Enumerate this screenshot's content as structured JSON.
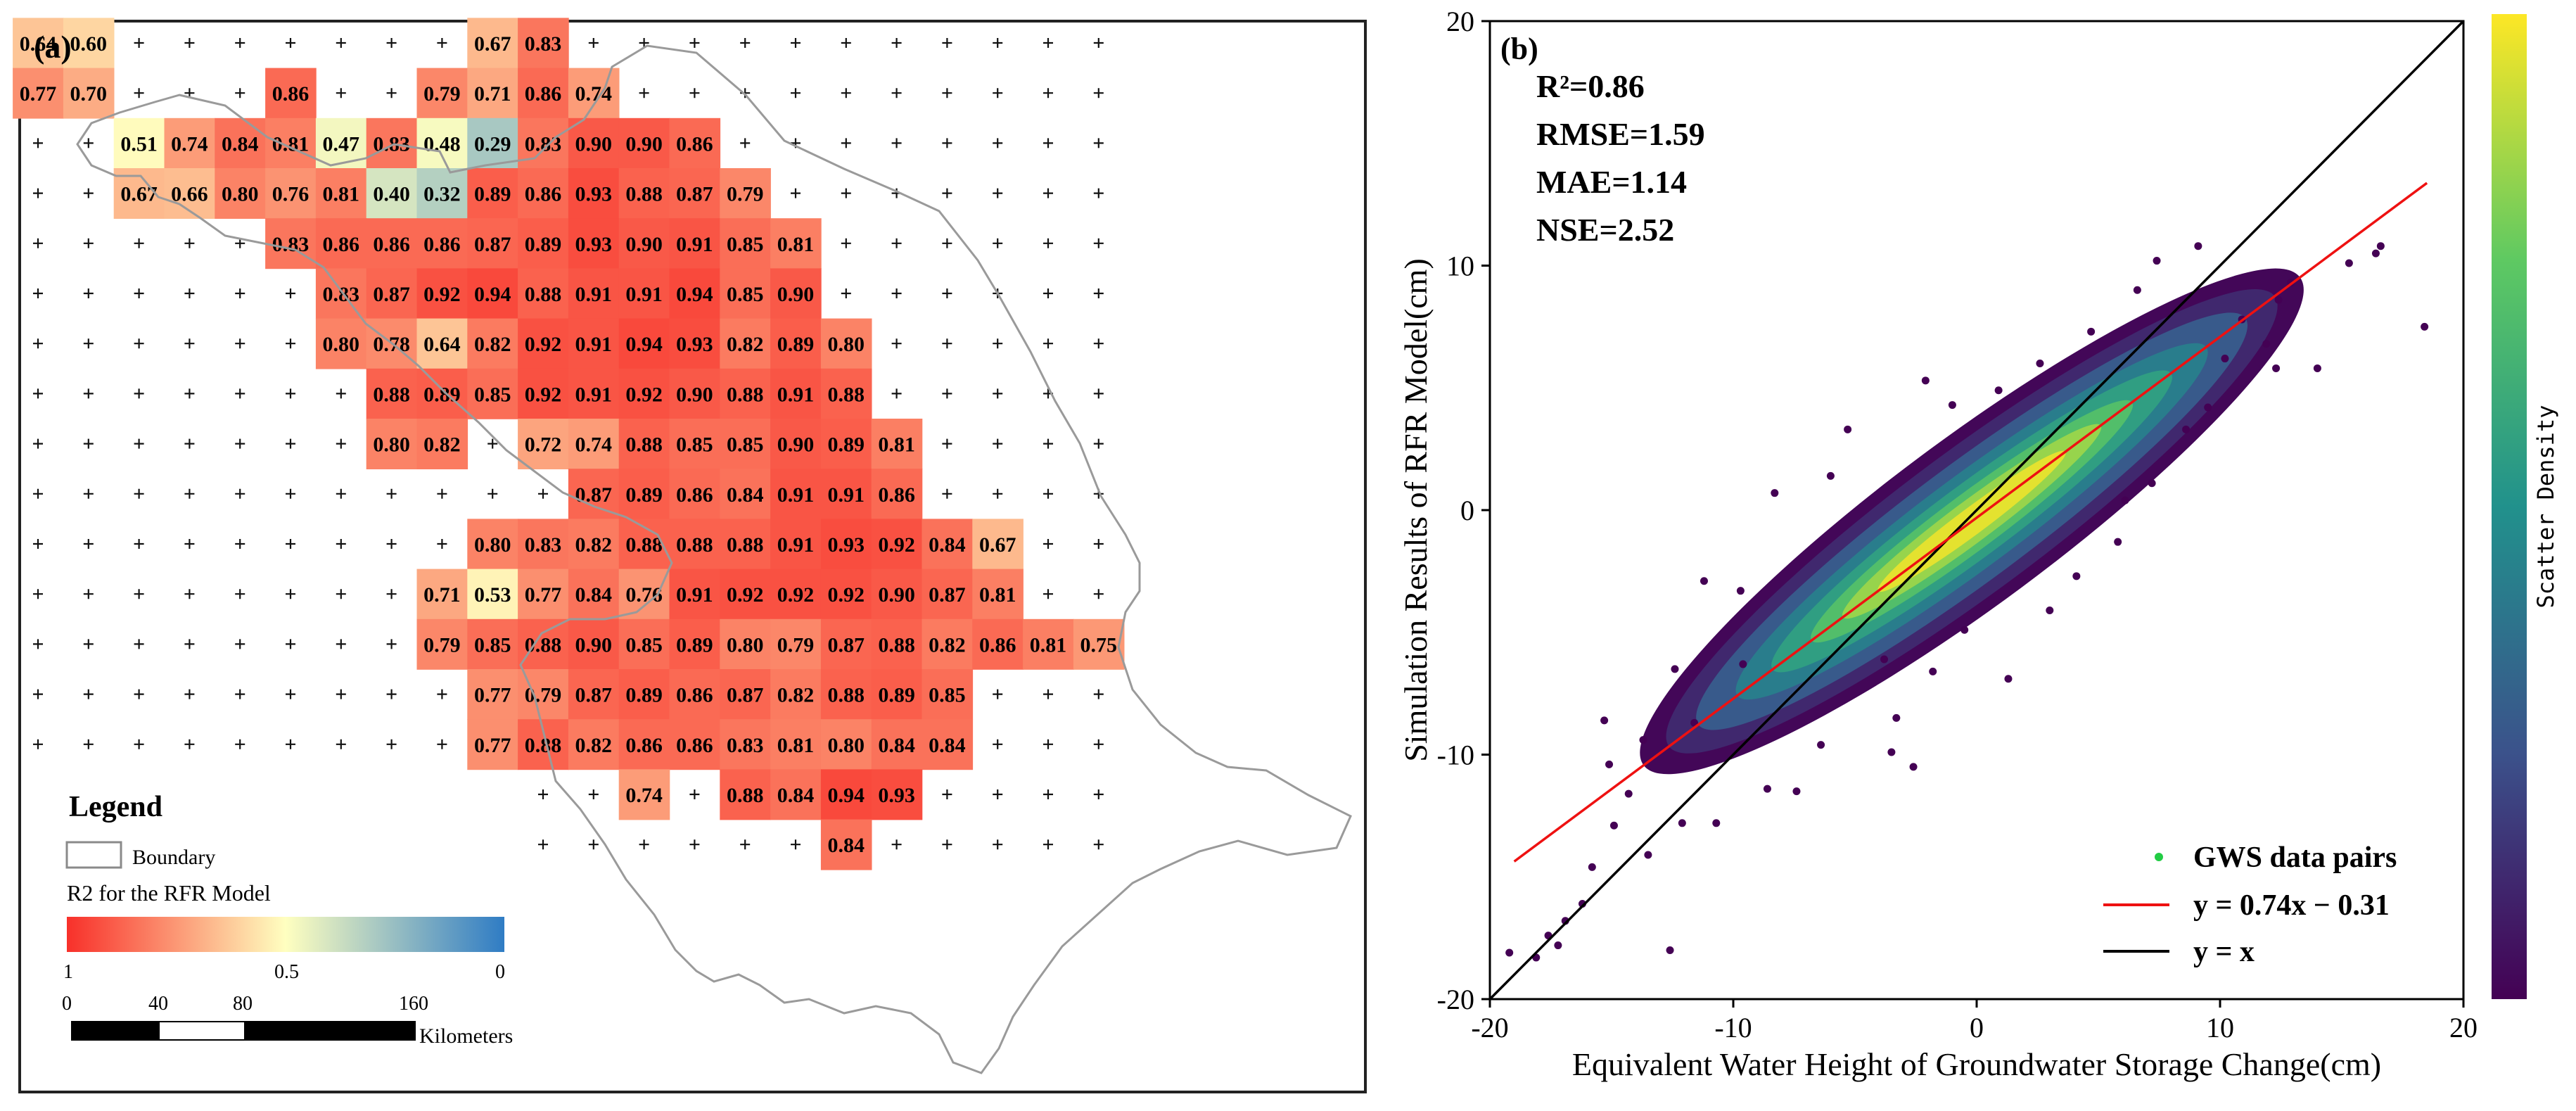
{
  "chart_data": [
    {
      "type": "heatmap",
      "panel_label": "(a)",
      "legend": {
        "title": "Legend",
        "boundary_label": "Boundary",
        "ramp_title": "R2 for the RFR Model",
        "ramp_ticks": [
          "1",
          "0.5",
          "0"
        ],
        "ramp_colors": [
          "#f8302a",
          "#ffffc0",
          "#2f7cc4"
        ],
        "scale_ticks": [
          "0",
          "40",
          "80",
          "160"
        ],
        "scale_unit": "Kilometers"
      },
      "grid_rows": 17,
      "grid_cols": 22,
      "cells": [
        {
          "row": 0,
          "col": 0,
          "value": 0.64
        },
        {
          "row": 0,
          "col": 1,
          "value": 0.6
        },
        {
          "row": 0,
          "col": 9,
          "value": 0.67
        },
        {
          "row": 0,
          "col": 10,
          "value": 0.83
        },
        {
          "row": 1,
          "col": 0,
          "value": 0.77
        },
        {
          "row": 1,
          "col": 1,
          "value": 0.7
        },
        {
          "row": 1,
          "col": 5,
          "value": 0.86
        },
        {
          "row": 1,
          "col": 8,
          "value": 0.79
        },
        {
          "row": 1,
          "col": 9,
          "value": 0.71
        },
        {
          "row": 1,
          "col": 10,
          "value": 0.86
        },
        {
          "row": 1,
          "col": 11,
          "value": 0.74
        },
        {
          "row": 2,
          "col": 2,
          "value": 0.51
        },
        {
          "row": 2,
          "col": 3,
          "value": 0.74
        },
        {
          "row": 2,
          "col": 4,
          "value": 0.84
        },
        {
          "row": 2,
          "col": 5,
          "value": 0.81
        },
        {
          "row": 2,
          "col": 6,
          "value": 0.47
        },
        {
          "row": 2,
          "col": 7,
          "value": 0.83
        },
        {
          "row": 2,
          "col": 8,
          "value": 0.48
        },
        {
          "row": 2,
          "col": 9,
          "value": 0.29
        },
        {
          "row": 2,
          "col": 10,
          "value": 0.83
        },
        {
          "row": 2,
          "col": 11,
          "value": 0.9
        },
        {
          "row": 2,
          "col": 12,
          "value": 0.9
        },
        {
          "row": 2,
          "col": 13,
          "value": 0.86
        },
        {
          "row": 3,
          "col": 2,
          "value": 0.67
        },
        {
          "row": 3,
          "col": 3,
          "value": 0.66
        },
        {
          "row": 3,
          "col": 4,
          "value": 0.8
        },
        {
          "row": 3,
          "col": 5,
          "value": 0.76
        },
        {
          "row": 3,
          "col": 6,
          "value": 0.81
        },
        {
          "row": 3,
          "col": 7,
          "value": 0.4
        },
        {
          "row": 3,
          "col": 8,
          "value": 0.32
        },
        {
          "row": 3,
          "col": 9,
          "value": 0.89
        },
        {
          "row": 3,
          "col": 10,
          "value": 0.86
        },
        {
          "row": 3,
          "col": 11,
          "value": 0.93
        },
        {
          "row": 3,
          "col": 12,
          "value": 0.88
        },
        {
          "row": 3,
          "col": 13,
          "value": 0.87
        },
        {
          "row": 3,
          "col": 14,
          "value": 0.79
        },
        {
          "row": 4,
          "col": 5,
          "value": 0.83
        },
        {
          "row": 4,
          "col": 6,
          "value": 0.86
        },
        {
          "row": 4,
          "col": 7,
          "value": 0.86
        },
        {
          "row": 4,
          "col": 8,
          "value": 0.86
        },
        {
          "row": 4,
          "col": 9,
          "value": 0.87
        },
        {
          "row": 4,
          "col": 10,
          "value": 0.89
        },
        {
          "row": 4,
          "col": 11,
          "value": 0.93
        },
        {
          "row": 4,
          "col": 12,
          "value": 0.9
        },
        {
          "row": 4,
          "col": 13,
          "value": 0.91
        },
        {
          "row": 4,
          "col": 14,
          "value": 0.85
        },
        {
          "row": 4,
          "col": 15,
          "value": 0.81
        },
        {
          "row": 5,
          "col": 6,
          "value": 0.83
        },
        {
          "row": 5,
          "col": 7,
          "value": 0.87
        },
        {
          "row": 5,
          "col": 8,
          "value": 0.92
        },
        {
          "row": 5,
          "col": 9,
          "value": 0.94
        },
        {
          "row": 5,
          "col": 10,
          "value": 0.88
        },
        {
          "row": 5,
          "col": 11,
          "value": 0.91
        },
        {
          "row": 5,
          "col": 12,
          "value": 0.91
        },
        {
          "row": 5,
          "col": 13,
          "value": 0.94
        },
        {
          "row": 5,
          "col": 14,
          "value": 0.85
        },
        {
          "row": 5,
          "col": 15,
          "value": 0.9
        },
        {
          "row": 6,
          "col": 6,
          "value": 0.8
        },
        {
          "row": 6,
          "col": 7,
          "value": 0.78
        },
        {
          "row": 6,
          "col": 8,
          "value": 0.64
        },
        {
          "row": 6,
          "col": 9,
          "value": 0.82
        },
        {
          "row": 6,
          "col": 10,
          "value": 0.92
        },
        {
          "row": 6,
          "col": 11,
          "value": 0.91
        },
        {
          "row": 6,
          "col": 12,
          "value": 0.94
        },
        {
          "row": 6,
          "col": 13,
          "value": 0.93
        },
        {
          "row": 6,
          "col": 14,
          "value": 0.82
        },
        {
          "row": 6,
          "col": 15,
          "value": 0.89
        },
        {
          "row": 6,
          "col": 16,
          "value": 0.8
        },
        {
          "row": 7,
          "col": 7,
          "value": 0.88
        },
        {
          "row": 7,
          "col": 8,
          "value": 0.89
        },
        {
          "row": 7,
          "col": 9,
          "value": 0.85
        },
        {
          "row": 7,
          "col": 10,
          "value": 0.92
        },
        {
          "row": 7,
          "col": 11,
          "value": 0.91
        },
        {
          "row": 7,
          "col": 12,
          "value": 0.92
        },
        {
          "row": 7,
          "col": 13,
          "value": 0.9
        },
        {
          "row": 7,
          "col": 14,
          "value": 0.88
        },
        {
          "row": 7,
          "col": 15,
          "value": 0.91
        },
        {
          "row": 7,
          "col": 16,
          "value": 0.88
        },
        {
          "row": 8,
          "col": 7,
          "value": 0.8
        },
        {
          "row": 8,
          "col": 8,
          "value": 0.82
        },
        {
          "row": 8,
          "col": 10,
          "value": 0.72
        },
        {
          "row": 8,
          "col": 11,
          "value": 0.74
        },
        {
          "row": 8,
          "col": 12,
          "value": 0.88
        },
        {
          "row": 8,
          "col": 13,
          "value": 0.85
        },
        {
          "row": 8,
          "col": 14,
          "value": 0.85
        },
        {
          "row": 8,
          "col": 15,
          "value": 0.9
        },
        {
          "row": 8,
          "col": 16,
          "value": 0.89
        },
        {
          "row": 8,
          "col": 17,
          "value": 0.81
        },
        {
          "row": 9,
          "col": 11,
          "value": 0.87
        },
        {
          "row": 9,
          "col": 12,
          "value": 0.89
        },
        {
          "row": 9,
          "col": 13,
          "value": 0.86
        },
        {
          "row": 9,
          "col": 14,
          "value": 0.84
        },
        {
          "row": 9,
          "col": 15,
          "value": 0.91
        },
        {
          "row": 9,
          "col": 16,
          "value": 0.91
        },
        {
          "row": 9,
          "col": 17,
          "value": 0.86
        },
        {
          "row": 10,
          "col": 9,
          "value": 0.8
        },
        {
          "row": 10,
          "col": 10,
          "value": 0.83
        },
        {
          "row": 10,
          "col": 11,
          "value": 0.82
        },
        {
          "row": 10,
          "col": 12,
          "value": 0.88
        },
        {
          "row": 10,
          "col": 13,
          "value": 0.88
        },
        {
          "row": 10,
          "col": 14,
          "value": 0.88
        },
        {
          "row": 10,
          "col": 15,
          "value": 0.91
        },
        {
          "row": 10,
          "col": 16,
          "value": 0.93
        },
        {
          "row": 10,
          "col": 17,
          "value": 0.92
        },
        {
          "row": 10,
          "col": 18,
          "value": 0.84
        },
        {
          "row": 10,
          "col": 19,
          "value": 0.67
        },
        {
          "row": 11,
          "col": 8,
          "value": 0.71
        },
        {
          "row": 11,
          "col": 9,
          "value": 0.53
        },
        {
          "row": 11,
          "col": 10,
          "value": 0.77
        },
        {
          "row": 11,
          "col": 11,
          "value": 0.84
        },
        {
          "row": 11,
          "col": 12,
          "value": 0.76
        },
        {
          "row": 11,
          "col": 13,
          "value": 0.91
        },
        {
          "row": 11,
          "col": 14,
          "value": 0.92
        },
        {
          "row": 11,
          "col": 15,
          "value": 0.92
        },
        {
          "row": 11,
          "col": 16,
          "value": 0.92
        },
        {
          "row": 11,
          "col": 17,
          "value": 0.9
        },
        {
          "row": 11,
          "col": 18,
          "value": 0.87
        },
        {
          "row": 11,
          "col": 19,
          "value": 0.81
        },
        {
          "row": 12,
          "col": 8,
          "value": 0.79
        },
        {
          "row": 12,
          "col": 9,
          "value": 0.85
        },
        {
          "row": 12,
          "col": 10,
          "value": 0.88
        },
        {
          "row": 12,
          "col": 11,
          "value": 0.9
        },
        {
          "row": 12,
          "col": 12,
          "value": 0.85
        },
        {
          "row": 12,
          "col": 13,
          "value": 0.89
        },
        {
          "row": 12,
          "col": 14,
          "value": 0.8
        },
        {
          "row": 12,
          "col": 15,
          "value": 0.79
        },
        {
          "row": 12,
          "col": 16,
          "value": 0.87
        },
        {
          "row": 12,
          "col": 17,
          "value": 0.88
        },
        {
          "row": 12,
          "col": 18,
          "value": 0.82
        },
        {
          "row": 12,
          "col": 19,
          "value": 0.86
        },
        {
          "row": 12,
          "col": 20,
          "value": 0.81
        },
        {
          "row": 12,
          "col": 21,
          "value": 0.75
        },
        {
          "row": 13,
          "col": 9,
          "value": 0.77
        },
        {
          "row": 13,
          "col": 10,
          "value": 0.79
        },
        {
          "row": 13,
          "col": 11,
          "value": 0.87
        },
        {
          "row": 13,
          "col": 12,
          "value": 0.89
        },
        {
          "row": 13,
          "col": 13,
          "value": 0.86
        },
        {
          "row": 13,
          "col": 14,
          "value": 0.87
        },
        {
          "row": 13,
          "col": 15,
          "value": 0.82
        },
        {
          "row": 13,
          "col": 16,
          "value": 0.88
        },
        {
          "row": 13,
          "col": 17,
          "value": 0.89
        },
        {
          "row": 13,
          "col": 18,
          "value": 0.85
        },
        {
          "row": 14,
          "col": 9,
          "value": 0.77
        },
        {
          "row": 14,
          "col": 10,
          "value": 0.88
        },
        {
          "row": 14,
          "col": 11,
          "value": 0.82
        },
        {
          "row": 14,
          "col": 12,
          "value": 0.86
        },
        {
          "row": 14,
          "col": 13,
          "value": 0.86
        },
        {
          "row": 14,
          "col": 14,
          "value": 0.83
        },
        {
          "row": 14,
          "col": 15,
          "value": 0.81
        },
        {
          "row": 14,
          "col": 16,
          "value": 0.8
        },
        {
          "row": 14,
          "col": 17,
          "value": 0.84
        },
        {
          "row": 14,
          "col": 18,
          "value": 0.84
        },
        {
          "row": 15,
          "col": 12,
          "value": 0.74
        },
        {
          "row": 15,
          "col": 14,
          "value": 0.88
        },
        {
          "row": 15,
          "col": 15,
          "value": 0.84
        },
        {
          "row": 15,
          "col": 16,
          "value": 0.94
        },
        {
          "row": 15,
          "col": 17,
          "value": 0.93
        },
        {
          "row": 16,
          "col": 16,
          "value": 0.84
        }
      ]
    },
    {
      "type": "scatter",
      "panel_label": "(b)",
      "xlabel": "Equivalent Water Height of Groundwater Storage Change(cm)",
      "ylabel": "Simulation Results of RFR Model(cm)",
      "xlim": [
        -20,
        20
      ],
      "ylim": [
        -20,
        20
      ],
      "xticks": [
        "-20",
        "-10",
        "0",
        "10",
        "20"
      ],
      "yticks": [
        "-20",
        "-10",
        "0",
        "10",
        "20"
      ],
      "stats": [
        "R²=0.86",
        "RMSE=1.59",
        "MAE=1.14",
        "NSE=2.52"
      ],
      "fit": {
        "slope": 0.74,
        "intercept": -0.31,
        "x_range": [
          -19,
          18.5
        ],
        "label": "y = 0.74x − 0.31"
      },
      "identity": {
        "label": "y = x"
      },
      "points_label": "GWS data pairs",
      "colorbar_label": "Scatter Density",
      "colormap": [
        "#440154",
        "#3b528b",
        "#21918c",
        "#5ec962",
        "#fde725"
      ],
      "outliers": [
        [
          -19.2,
          -18.1
        ],
        [
          -18.1,
          -18.3
        ],
        [
          -17.6,
          -17.4
        ],
        [
          -16.9,
          -16.8
        ],
        [
          -16.2,
          -16.1
        ],
        [
          -12.6,
          -18.0
        ],
        [
          -11.6,
          -8.7
        ],
        [
          -14.9,
          -12.9
        ],
        [
          -15.8,
          -14.6
        ],
        [
          -17.2,
          -17.8
        ],
        [
          -8.3,
          0.7
        ],
        [
          -11.2,
          -2.9
        ],
        [
          -12.4,
          -6.5
        ],
        [
          -15.3,
          -8.6
        ],
        [
          -13.5,
          -14.1
        ],
        [
          -10.7,
          -12.8
        ],
        [
          -8.6,
          -11.4
        ],
        [
          -7.4,
          -11.5
        ],
        [
          -3.5,
          -9.9
        ],
        [
          -2.6,
          -10.5
        ],
        [
          -3.3,
          -8.5
        ],
        [
          -0.5,
          -4.9
        ],
        [
          1.3,
          -6.9
        ],
        [
          3.0,
          -4.1
        ],
        [
          4.1,
          -2.7
        ],
        [
          -2.1,
          5.3
        ],
        [
          -1.0,
          4.3
        ],
        [
          -5.3,
          3.3
        ],
        [
          4.7,
          7.3
        ],
        [
          6.6,
          9.0
        ],
        [
          7.4,
          10.2
        ],
        [
          9.1,
          10.8
        ],
        [
          10.9,
          7.8
        ],
        [
          12.4,
          8.6
        ],
        [
          12.9,
          9.3
        ],
        [
          14.0,
          5.8
        ],
        [
          15.3,
          10.1
        ],
        [
          16.6,
          10.8
        ],
        [
          16.4,
          10.5
        ],
        [
          18.4,
          7.5
        ],
        [
          11.9,
          6.8
        ],
        [
          10.2,
          6.2
        ],
        [
          12.3,
          5.8
        ],
        [
          9.5,
          4.2
        ],
        [
          8.6,
          3.3
        ],
        [
          6.1,
          0.4
        ],
        [
          5.8,
          -1.3
        ],
        [
          7.2,
          1.1
        ],
        [
          -6.4,
          -9.6
        ],
        [
          -9.6,
          -6.3
        ],
        [
          -13.7,
          -9.4
        ],
        [
          -12.1,
          -12.8
        ],
        [
          -9.7,
          -3.3
        ],
        [
          -6.0,
          1.4
        ],
        [
          0.9,
          4.9
        ],
        [
          2.6,
          6.0
        ],
        [
          -3.8,
          -6.1
        ],
        [
          -1.8,
          -6.6
        ],
        [
          -15.1,
          -10.4
        ],
        [
          -14.3,
          -11.6
        ]
      ]
    }
  ]
}
